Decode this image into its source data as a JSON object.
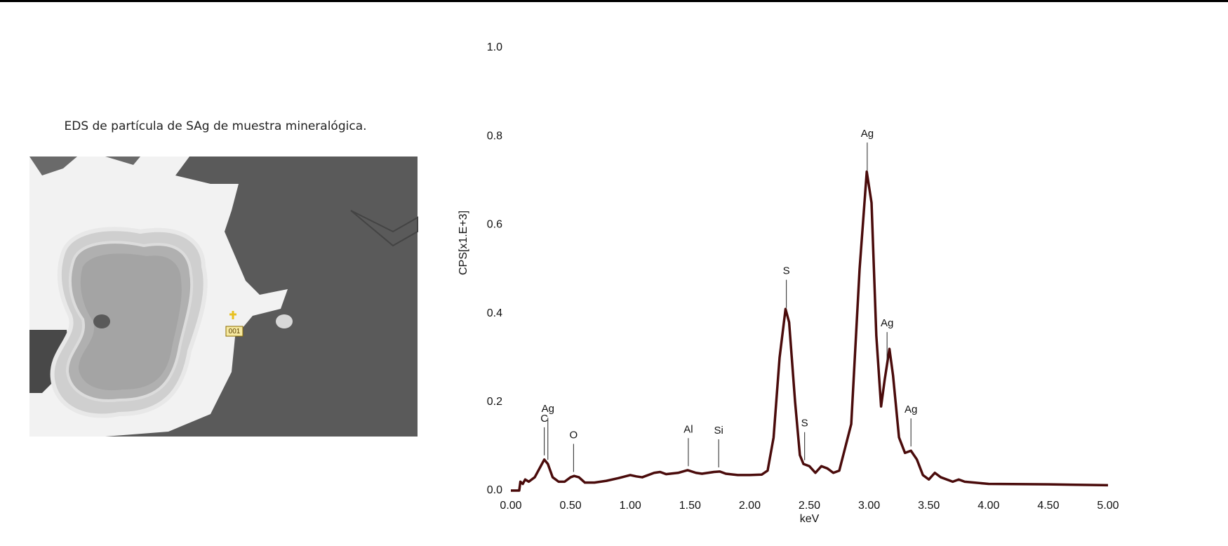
{
  "caption": "EDS de partícula de SAg de muestra mineralógica.",
  "image": {
    "marker_label": "001"
  },
  "chart_data": {
    "type": "line",
    "x_label": "keV",
    "y_label": "CPS[x1.E+3]",
    "color": "#4a0b0b",
    "x": [
      0.0,
      0.07,
      0.08,
      0.1,
      0.12,
      0.15,
      0.2,
      0.25,
      0.28,
      0.31,
      0.35,
      0.4,
      0.45,
      0.5,
      0.53,
      0.57,
      0.62,
      0.7,
      0.8,
      0.9,
      1.0,
      1.05,
      1.1,
      1.2,
      1.25,
      1.3,
      1.4,
      1.48,
      1.55,
      1.6,
      1.7,
      1.75,
      1.8,
      1.9,
      2.0,
      2.1,
      2.15,
      2.2,
      2.25,
      2.3,
      2.33,
      2.38,
      2.42,
      2.45,
      2.5,
      2.55,
      2.6,
      2.65,
      2.7,
      2.75,
      2.85,
      2.92,
      2.98,
      3.02,
      3.06,
      3.1,
      3.13,
      3.17,
      3.2,
      3.25,
      3.3,
      3.35,
      3.4,
      3.45,
      3.5,
      3.55,
      3.6,
      3.7,
      3.75,
      3.8,
      4.0,
      4.5,
      5.0
    ],
    "values": [
      0.0,
      0.0,
      0.02,
      0.015,
      0.025,
      0.02,
      0.03,
      0.055,
      0.07,
      0.06,
      0.03,
      0.02,
      0.02,
      0.03,
      0.033,
      0.03,
      0.018,
      0.018,
      0.022,
      0.028,
      0.035,
      0.032,
      0.03,
      0.04,
      0.042,
      0.037,
      0.04,
      0.046,
      0.04,
      0.038,
      0.042,
      0.043,
      0.038,
      0.035,
      0.035,
      0.036,
      0.045,
      0.12,
      0.3,
      0.41,
      0.38,
      0.2,
      0.08,
      0.06,
      0.055,
      0.04,
      0.055,
      0.05,
      0.04,
      0.045,
      0.15,
      0.5,
      0.72,
      0.65,
      0.35,
      0.19,
      0.25,
      0.32,
      0.26,
      0.12,
      0.085,
      0.09,
      0.07,
      0.035,
      0.025,
      0.04,
      0.03,
      0.02,
      0.025,
      0.02,
      0.015,
      0.014,
      0.012
    ],
    "annotations": [
      {
        "text": "C",
        "x": 0.28
      },
      {
        "text": "Ag",
        "x": 0.31
      },
      {
        "text": "O",
        "x": 0.525
      },
      {
        "text": "Al",
        "x": 1.486
      },
      {
        "text": "Si",
        "x": 1.74
      },
      {
        "text": "S",
        "x": 2.307
      },
      {
        "text": "S",
        "x": 2.46
      },
      {
        "text": "Ag",
        "x": 2.984
      },
      {
        "text": "Ag",
        "x": 3.15
      },
      {
        "text": "Ag",
        "x": 3.35
      }
    ],
    "xlim": [
      0,
      5
    ],
    "ylim": [
      0,
      1
    ],
    "xticks": [
      {
        "value": 0,
        "label": "0.00"
      },
      {
        "value": 0.5,
        "label": "0.50"
      },
      {
        "value": 1,
        "label": "1.00"
      },
      {
        "value": 1.5,
        "label": "1.50"
      },
      {
        "value": 2,
        "label": "2.00"
      },
      {
        "value": 2.5,
        "label": "2.50"
      },
      {
        "value": 3,
        "label": "3.00"
      },
      {
        "value": 3.5,
        "label": "3.50"
      },
      {
        "value": 4,
        "label": "4.00"
      },
      {
        "value": 4.5,
        "label": "4.50"
      },
      {
        "value": 5,
        "label": "5.00"
      }
    ],
    "yticks": [
      {
        "value": 0,
        "label": "0.0"
      },
      {
        "value": 0.2,
        "label": "0.2"
      },
      {
        "value": 0.4,
        "label": "0.4"
      },
      {
        "value": 0.6,
        "label": "0.6"
      },
      {
        "value": 0.8,
        "label": "0.8"
      },
      {
        "value": 1,
        "label": "1.0"
      }
    ]
  }
}
